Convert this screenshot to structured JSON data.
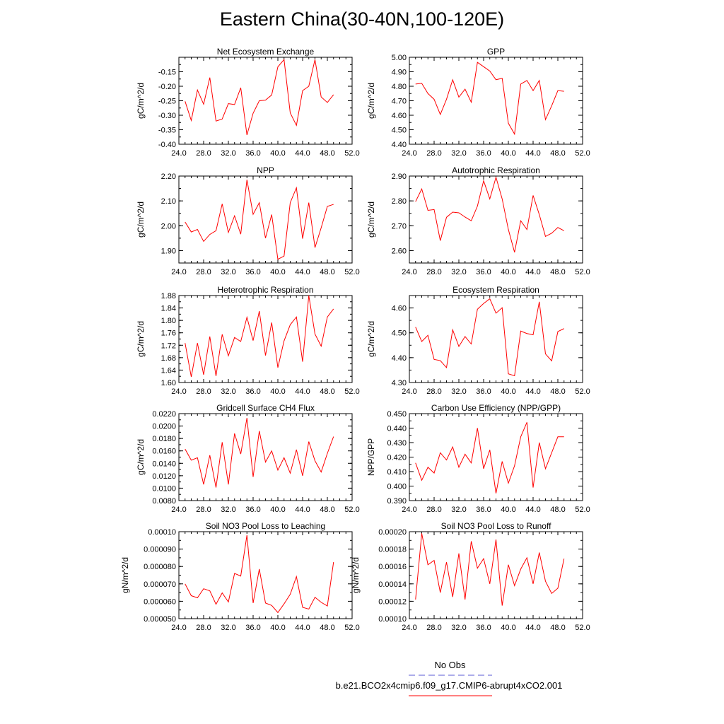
{
  "title": "Eastern China(30-40N,100-120E)",
  "legend": {
    "entries": [
      {
        "label": "No Obs",
        "color": "#5b5bd6",
        "style": "dashed"
      },
      {
        "label": "b.e21.BCO2x4cmip6.f09_g17.CMIP6-abrupt4xCO2.001",
        "color": "#ff0000",
        "style": "solid"
      }
    ]
  },
  "chart_data": [
    {
      "type": "line",
      "title": "Net Ecosystem Exchange",
      "ylabel": "gC/m^2/d",
      "xlabel": "",
      "xlim": [
        24,
        52
      ],
      "ylim": [
        -0.4,
        -0.1
      ],
      "xticks": [
        "24.0",
        "28.0",
        "32.0",
        "36.0",
        "40.0",
        "44.0",
        "48.0",
        "52.0"
      ],
      "yticks": [
        -0.4,
        -0.35,
        -0.3,
        -0.25,
        -0.2,
        -0.15
      ],
      "ytick_labels": [
        "-0.40",
        "-0.35",
        "-0.30",
        "-0.25",
        "-0.20",
        "-0.15"
      ],
      "x": [
        25,
        26,
        27,
        28,
        29,
        30,
        31,
        32,
        33,
        34,
        35,
        36,
        37,
        38,
        39,
        40,
        41,
        42,
        43,
        44,
        45,
        46,
        47,
        48,
        49
      ],
      "series": [
        {
          "name": "b.e21.BCO2x4cmip6.f09_g17.CMIP6-abrupt4xCO2.001",
          "color": "#ff0000",
          "values": [
            -0.252,
            -0.318,
            -0.213,
            -0.262,
            -0.17,
            -0.32,
            -0.313,
            -0.26,
            -0.263,
            -0.205,
            -0.368,
            -0.293,
            -0.25,
            -0.248,
            -0.23,
            -0.133,
            -0.108,
            -0.292,
            -0.335,
            -0.215,
            -0.2,
            -0.108,
            -0.237,
            -0.256,
            -0.229
          ]
        }
      ]
    },
    {
      "type": "line",
      "title": "GPP",
      "ylabel": "gC/m^2/d",
      "xlabel": "",
      "xlim": [
        24,
        52
      ],
      "ylim": [
        4.4,
        5.0
      ],
      "xticks": [
        "24.0",
        "28.0",
        "32.0",
        "36.0",
        "40.0",
        "44.0",
        "48.0",
        "52.0"
      ],
      "yticks": [
        4.4,
        4.5,
        4.6,
        4.7,
        4.8,
        4.9,
        5.0
      ],
      "ytick_labels": [
        "4.40",
        "4.50",
        "4.60",
        "4.70",
        "4.80",
        "4.90",
        "5.00"
      ],
      "x": [
        25,
        26,
        27,
        28,
        29,
        30,
        31,
        32,
        33,
        34,
        35,
        36,
        37,
        38,
        39,
        40,
        41,
        42,
        43,
        44,
        45,
        46,
        47,
        48,
        49
      ],
      "series": [
        {
          "name": "b.e21.BCO2x4cmip6.f09_g17.CMIP6-abrupt4xCO2.001",
          "color": "#ff0000",
          "values": [
            4.815,
            4.82,
            4.75,
            4.71,
            4.605,
            4.71,
            4.845,
            4.725,
            4.78,
            4.69,
            4.965,
            4.935,
            4.905,
            4.845,
            4.855,
            4.545,
            4.47,
            4.815,
            4.84,
            4.77,
            4.84,
            4.57,
            4.665,
            4.77,
            4.765
          ]
        }
      ]
    },
    {
      "type": "line",
      "title": "NPP",
      "ylabel": "gC/m^2/d",
      "xlabel": "",
      "xlim": [
        24,
        52
      ],
      "ylim": [
        1.85,
        2.2
      ],
      "xticks": [
        "24.0",
        "28.0",
        "32.0",
        "36.0",
        "40.0",
        "44.0",
        "48.0",
        "52.0"
      ],
      "yticks": [
        1.9,
        2.0,
        2.1,
        2.2
      ],
      "ytick_labels": [
        "1.90",
        "2.00",
        "2.10",
        "2.20"
      ],
      "x": [
        25,
        26,
        27,
        28,
        29,
        30,
        31,
        32,
        33,
        34,
        35,
        36,
        37,
        38,
        39,
        40,
        41,
        42,
        43,
        44,
        45,
        46,
        47,
        48,
        49
      ],
      "series": [
        {
          "name": "b.e21.BCO2x4cmip6.f09_g17.CMIP6-abrupt4xCO2.001",
          "color": "#ff0000",
          "values": [
            2.015,
            1.975,
            1.985,
            1.937,
            1.965,
            1.98,
            2.088,
            1.973,
            2.04,
            1.966,
            2.185,
            2.046,
            2.093,
            1.95,
            2.045,
            1.865,
            1.878,
            2.093,
            2.153,
            1.948,
            2.093,
            1.912,
            1.992,
            2.078,
            2.086
          ]
        }
      ]
    },
    {
      "type": "line",
      "title": "Autotrophic Respiration",
      "ylabel": "gC/m^2/d",
      "xlabel": "",
      "xlim": [
        24,
        52
      ],
      "ylim": [
        2.55,
        2.9
      ],
      "xticks": [
        "24.0",
        "28.0",
        "32.0",
        "36.0",
        "40.0",
        "44.0",
        "48.0",
        "52.0"
      ],
      "yticks": [
        2.6,
        2.7,
        2.8,
        2.9
      ],
      "ytick_labels": [
        "2.60",
        "2.70",
        "2.80",
        "2.90"
      ],
      "x": [
        25,
        26,
        27,
        28,
        29,
        30,
        31,
        32,
        33,
        34,
        35,
        36,
        37,
        38,
        39,
        40,
        41,
        42,
        43,
        44,
        45,
        46,
        47,
        48,
        49
      ],
      "series": [
        {
          "name": "b.e21.BCO2x4cmip6.f09_g17.CMIP6-abrupt4xCO2.001",
          "color": "#ff0000",
          "values": [
            2.797,
            2.848,
            2.762,
            2.765,
            2.64,
            2.734,
            2.755,
            2.752,
            2.735,
            2.72,
            2.779,
            2.881,
            2.808,
            2.895,
            2.808,
            2.685,
            2.593,
            2.72,
            2.685,
            2.822,
            2.745,
            2.657,
            2.67,
            2.693,
            2.68
          ]
        }
      ]
    },
    {
      "type": "line",
      "title": "Heterotrophic Respiration",
      "ylabel": "gC/m^2/d",
      "xlabel": "",
      "xlim": [
        24,
        52
      ],
      "ylim": [
        1.6,
        1.88
      ],
      "xticks": [
        "24.0",
        "28.0",
        "32.0",
        "36.0",
        "40.0",
        "44.0",
        "48.0",
        "52.0"
      ],
      "yticks": [
        1.6,
        1.64,
        1.68,
        1.72,
        1.76,
        1.8,
        1.84,
        1.88
      ],
      "ytick_labels": [
        "1.60",
        "1.64",
        "1.68",
        "1.72",
        "1.76",
        "1.80",
        "1.84",
        "1.88"
      ],
      "x": [
        25,
        26,
        27,
        28,
        29,
        30,
        31,
        32,
        33,
        34,
        35,
        36,
        37,
        38,
        39,
        40,
        41,
        42,
        43,
        44,
        45,
        46,
        47,
        48,
        49
      ],
      "series": [
        {
          "name": "b.e21.BCO2x4cmip6.f09_g17.CMIP6-abrupt4xCO2.001",
          "color": "#ff0000",
          "values": [
            1.727,
            1.618,
            1.727,
            1.625,
            1.748,
            1.621,
            1.755,
            1.686,
            1.745,
            1.732,
            1.81,
            1.735,
            1.83,
            1.687,
            1.793,
            1.648,
            1.734,
            1.786,
            1.811,
            1.667,
            1.88,
            1.756,
            1.717,
            1.811,
            1.837
          ]
        }
      ]
    },
    {
      "type": "line",
      "title": "Ecosystem Respiration",
      "ylabel": "gC/m^2/d",
      "xlabel": "",
      "xlim": [
        24,
        52
      ],
      "ylim": [
        4.3,
        4.65
      ],
      "xticks": [
        "24.0",
        "28.0",
        "32.0",
        "36.0",
        "40.0",
        "44.0",
        "48.0",
        "52.0"
      ],
      "yticks": [
        4.3,
        4.4,
        4.5,
        4.6
      ],
      "ytick_labels": [
        "4.30",
        "4.40",
        "4.50",
        "4.60"
      ],
      "x": [
        25,
        26,
        27,
        28,
        29,
        30,
        31,
        32,
        33,
        34,
        35,
        36,
        37,
        38,
        39,
        40,
        41,
        42,
        43,
        44,
        45,
        46,
        47,
        48,
        49
      ],
      "series": [
        {
          "name": "b.e21.BCO2x4cmip6.f09_g17.CMIP6-abrupt4xCO2.001",
          "color": "#ff0000",
          "values": [
            4.523,
            4.465,
            4.49,
            4.393,
            4.388,
            4.36,
            4.512,
            4.445,
            4.485,
            4.455,
            4.595,
            4.618,
            4.637,
            4.579,
            4.601,
            4.335,
            4.327,
            4.507,
            4.497,
            4.492,
            4.625,
            4.415,
            4.387,
            4.505,
            4.517
          ]
        }
      ]
    },
    {
      "type": "line",
      "title": "Gridcell Surface CH4 Flux",
      "ylabel": "gC/m^2/d",
      "xlabel": "",
      "xlim": [
        24,
        52
      ],
      "ylim": [
        0.008,
        0.022
      ],
      "xticks": [
        "24.0",
        "28.0",
        "32.0",
        "36.0",
        "40.0",
        "44.0",
        "48.0",
        "52.0"
      ],
      "yticks": [
        0.008,
        0.01,
        0.012,
        0.014,
        0.016,
        0.018,
        0.02,
        0.022
      ],
      "ytick_labels": [
        "0.0080",
        "0.0100",
        "0.0120",
        "0.0140",
        "0.0160",
        "0.0180",
        "0.0200",
        "0.0220"
      ],
      "x": [
        25,
        26,
        27,
        28,
        29,
        30,
        31,
        32,
        33,
        34,
        35,
        36,
        37,
        38,
        39,
        40,
        41,
        42,
        43,
        44,
        45,
        46,
        47,
        48,
        49
      ],
      "series": [
        {
          "name": "b.e21.BCO2x4cmip6.f09_g17.CMIP6-abrupt4xCO2.001",
          "color": "#ff0000",
          "values": [
            0.0163,
            0.0145,
            0.0149,
            0.0106,
            0.0153,
            0.0101,
            0.0174,
            0.0106,
            0.0188,
            0.0155,
            0.0213,
            0.0118,
            0.0192,
            0.0142,
            0.016,
            0.0129,
            0.0149,
            0.0124,
            0.0162,
            0.012,
            0.0175,
            0.0144,
            0.0126,
            0.0156,
            0.0183
          ]
        }
      ]
    },
    {
      "type": "line",
      "title": "Carbon Use Efficiency (NPP/GPP)",
      "ylabel": "NPP/GPP",
      "xlabel": "",
      "xlim": [
        24,
        52
      ],
      "ylim": [
        0.39,
        0.45
      ],
      "xticks": [
        "24.0",
        "28.0",
        "32.0",
        "36.0",
        "40.0",
        "44.0",
        "48.0",
        "52.0"
      ],
      "yticks": [
        0.39,
        0.4,
        0.41,
        0.42,
        0.43,
        0.44,
        0.45
      ],
      "ytick_labels": [
        "0.390",
        "0.400",
        "0.410",
        "0.420",
        "0.430",
        "0.440",
        "0.450"
      ],
      "x": [
        25,
        26,
        27,
        28,
        29,
        30,
        31,
        32,
        33,
        34,
        35,
        36,
        37,
        38,
        39,
        40,
        41,
        42,
        43,
        44,
        45,
        46,
        47,
        48,
        49
      ],
      "series": [
        {
          "name": "b.e21.BCO2x4cmip6.f09_g17.CMIP6-abrupt4xCO2.001",
          "color": "#ff0000",
          "values": [
            0.416,
            0.404,
            0.413,
            0.409,
            0.423,
            0.418,
            0.427,
            0.413,
            0.422,
            0.416,
            0.44,
            0.412,
            0.425,
            0.395,
            0.417,
            0.402,
            0.414,
            0.434,
            0.444,
            0.399,
            0.43,
            0.412,
            0.423,
            0.434,
            0.434
          ]
        }
      ]
    },
    {
      "type": "line",
      "title": "Soil NO3 Pool Loss to Leaching",
      "ylabel": "gN/m^2/d",
      "xlabel": "",
      "xlim": [
        24,
        52
      ],
      "ylim": [
        5e-05,
        0.0001
      ],
      "xticks": [
        "24.0",
        "28.0",
        "32.0",
        "36.0",
        "40.0",
        "44.0",
        "48.0",
        "52.0"
      ],
      "yticks": [
        5e-05,
        6e-05,
        7e-05,
        8e-05,
        9e-05,
        0.0001
      ],
      "ytick_labels": [
        "0.000050",
        "0.000060",
        "0.000070",
        "0.000080",
        "0.000090",
        "0.00010"
      ],
      "x": [
        25,
        26,
        27,
        28,
        29,
        30,
        31,
        32,
        33,
        34,
        35,
        36,
        37,
        38,
        39,
        40,
        41,
        42,
        43,
        44,
        45,
        46,
        47,
        48,
        49
      ],
      "series": [
        {
          "name": "b.e21.BCO2x4cmip6.f09_g17.CMIP6-abrupt4xCO2.001",
          "color": "#ff0000",
          "values": [
            7e-05,
            6.32e-05,
            6.2e-05,
            6.72e-05,
            6.6e-05,
            5.83e-05,
            6.48e-05,
            5.96e-05,
            7.6e-05,
            7.45e-05,
            9.8e-05,
            5.9e-05,
            7.85e-05,
            5.9e-05,
            5.76e-05,
            5.35e-05,
            5.85e-05,
            6.4e-05,
            7.42e-05,
            5.65e-05,
            5.55e-05,
            6.23e-05,
            5.94e-05,
            5.73e-05,
            8.25e-05
          ]
        }
      ]
    },
    {
      "type": "line",
      "title": "Soil NO3 Pool Loss to Runoff",
      "ylabel": "gN/m^2/d",
      "xlabel": "",
      "xlim": [
        24,
        52
      ],
      "ylim": [
        0.0001,
        0.0002
      ],
      "xticks": [
        "24.0",
        "28.0",
        "32.0",
        "36.0",
        "40.0",
        "44.0",
        "48.0",
        "52.0"
      ],
      "yticks": [
        0.0001,
        0.00012,
        0.00014,
        0.00016,
        0.00018,
        0.0002
      ],
      "ytick_labels": [
        "0.00010",
        "0.00012",
        "0.00014",
        "0.00016",
        "0.00018",
        "0.00020"
      ],
      "x": [
        25,
        26,
        27,
        28,
        29,
        30,
        31,
        32,
        33,
        34,
        35,
        36,
        37,
        38,
        39,
        40,
        41,
        42,
        43,
        44,
        45,
        46,
        47,
        48,
        49
      ],
      "series": [
        {
          "name": "b.e21.BCO2x4cmip6.f09_g17.CMIP6-abrupt4xCO2.001",
          "color": "#ff0000",
          "values": [
            0.000122,
            0.000198,
            0.000162,
            0.000167,
            0.00013,
            0.000165,
            0.000125,
            0.000175,
            0.000122,
            0.000189,
            0.000158,
            0.000169,
            0.00014,
            0.000191,
            0.000115,
            0.000162,
            0.000138,
            0.000157,
            0.00017,
            0.00014,
            0.000176,
            0.000143,
            0.000129,
            0.000135,
            0.000169
          ]
        }
      ]
    }
  ]
}
